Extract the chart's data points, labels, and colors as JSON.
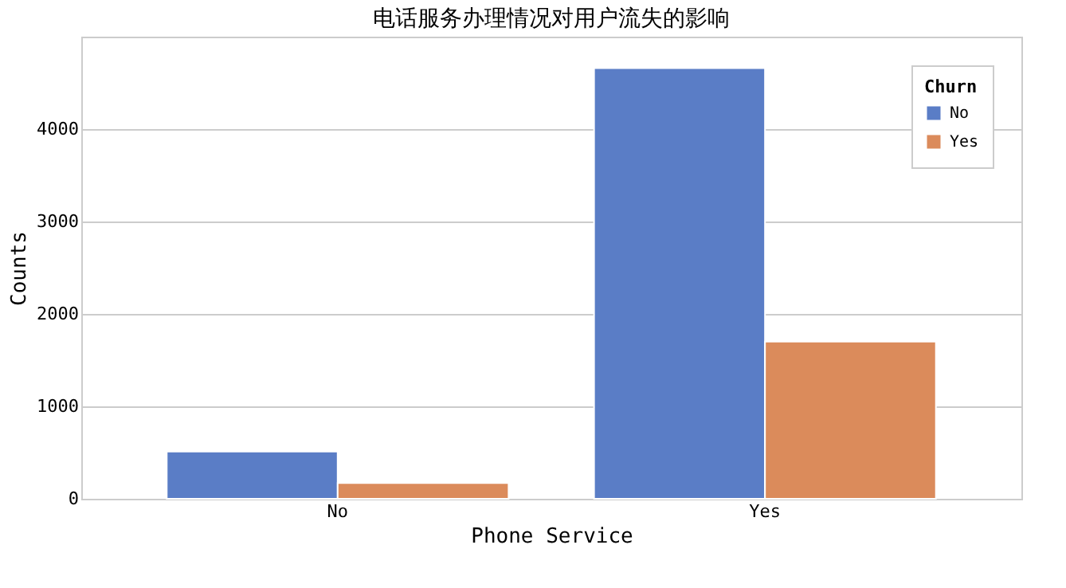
{
  "chart_data": {
    "type": "bar",
    "title": "电话服务办理情况对用户流失的影响",
    "xlabel": "Phone Service",
    "ylabel": "Counts",
    "legend_title": "Churn",
    "categories": [
      "No",
      "Yes"
    ],
    "series": [
      {
        "name": "No",
        "color": "#5a7dc6",
        "values": [
          510,
          4660
        ]
      },
      {
        "name": "Yes",
        "color": "#db8b5b",
        "values": [
          170,
          1700
        ]
      }
    ],
    "ylim": [
      0,
      5000
    ],
    "yticks": [
      0,
      1000,
      2000,
      3000,
      4000
    ],
    "grid": "y",
    "legend": "top right"
  }
}
